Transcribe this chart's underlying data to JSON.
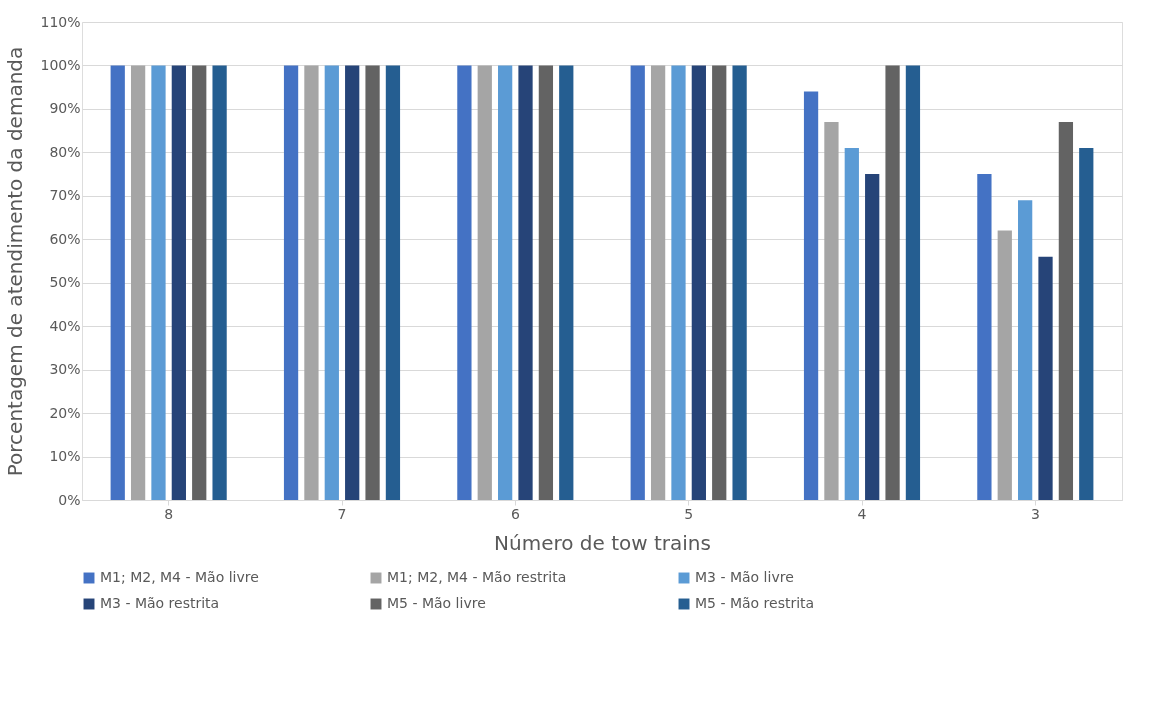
{
  "chart_data": {
    "type": "bar",
    "xlabel": "Número de tow trains",
    "ylabel": "Porcentagem de atendimento da demanda",
    "categories": [
      "8",
      "7",
      "6",
      "5",
      "4",
      "3"
    ],
    "series": [
      {
        "name": "M1; M2, M4 - Mão livre",
        "color": "#4472c4",
        "values": [
          100,
          100,
          100,
          100,
          94,
          75
        ]
      },
      {
        "name": "M1; M2, M4 - Mão restrita",
        "color": "#a5a5a5",
        "values": [
          100,
          100,
          100,
          100,
          87,
          62
        ]
      },
      {
        "name": "M3 - Mão livre",
        "color": "#5b9bd5",
        "values": [
          100,
          100,
          100,
          100,
          81,
          69
        ]
      },
      {
        "name": "M3 - Mão restrita",
        "color": "#264478",
        "values": [
          100,
          100,
          100,
          100,
          75,
          56
        ]
      },
      {
        "name": "M5 - Mão livre",
        "color": "#636363",
        "values": [
          100,
          100,
          100,
          100,
          100,
          87
        ]
      },
      {
        "name": "M5 - Mão restrita",
        "color": "#255e91",
        "values": [
          100,
          100,
          100,
          100,
          100,
          81
        ]
      }
    ],
    "ylim": [
      0,
      110
    ],
    "yticks": [
      {
        "value": 0,
        "label": "0%"
      },
      {
        "value": 10,
        "label": "10%"
      },
      {
        "value": 20,
        "label": "20%"
      },
      {
        "value": 30,
        "label": "30%"
      },
      {
        "value": 40,
        "label": "40%"
      },
      {
        "value": 50,
        "label": "50%"
      },
      {
        "value": 60,
        "label": "60%"
      },
      {
        "value": 70,
        "label": "70%"
      },
      {
        "value": 80,
        "label": "80%"
      },
      {
        "value": 90,
        "label": "90%"
      },
      {
        "value": 100,
        "label": "100%"
      },
      {
        "value": 110,
        "label": "110%"
      }
    ],
    "grid": "y",
    "legend": "bottom"
  }
}
